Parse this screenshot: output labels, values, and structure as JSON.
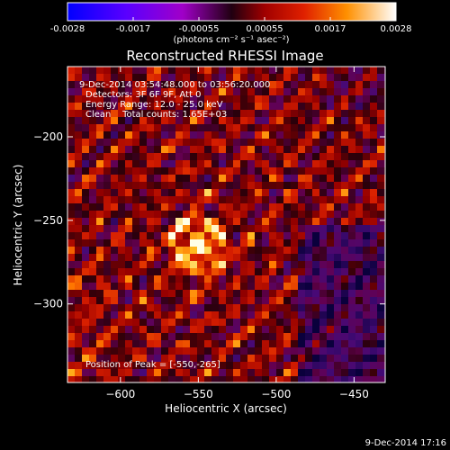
{
  "colorbar": {
    "ticks": [
      "-0.0028",
      "-0.0017",
      "-0.00055",
      "0.00055",
      "0.0017",
      "0.0028"
    ],
    "units_label": "(photons cm⁻² s⁻¹ asec⁻²)"
  },
  "plot": {
    "title": "Reconstructed RHESSI Image",
    "xlabel": "Heliocentric X (arcsec)",
    "ylabel": "Heliocentric Y (arcsec)",
    "xticks": [
      "-600",
      "-550",
      "-500",
      "-450"
    ],
    "yticks": [
      "-200",
      "-250",
      "-300"
    ]
  },
  "annotations": {
    "time_range": "9-Dec-2014 03:54:48.000 to 03:56:20.000",
    "detectors": "Detectors: 3F 6F 9F, Att 0",
    "energy_range": "Energy Range: 12.0 - 25.0 keV",
    "clean_counts": "Clean    Total counts: 1.65E+03",
    "peak_position": "Position of Peak = [-550,-265]"
  },
  "footer": {
    "timestamp": "9-Dec-2014 17:16"
  },
  "chart_data": {
    "type": "heatmap",
    "xlim": [
      -634,
      -430
    ],
    "ylim": [
      -347,
      -158
    ],
    "value_range": [
      -0.0028,
      0.0028
    ],
    "peak": {
      "x": -550,
      "y": -265
    }
  }
}
